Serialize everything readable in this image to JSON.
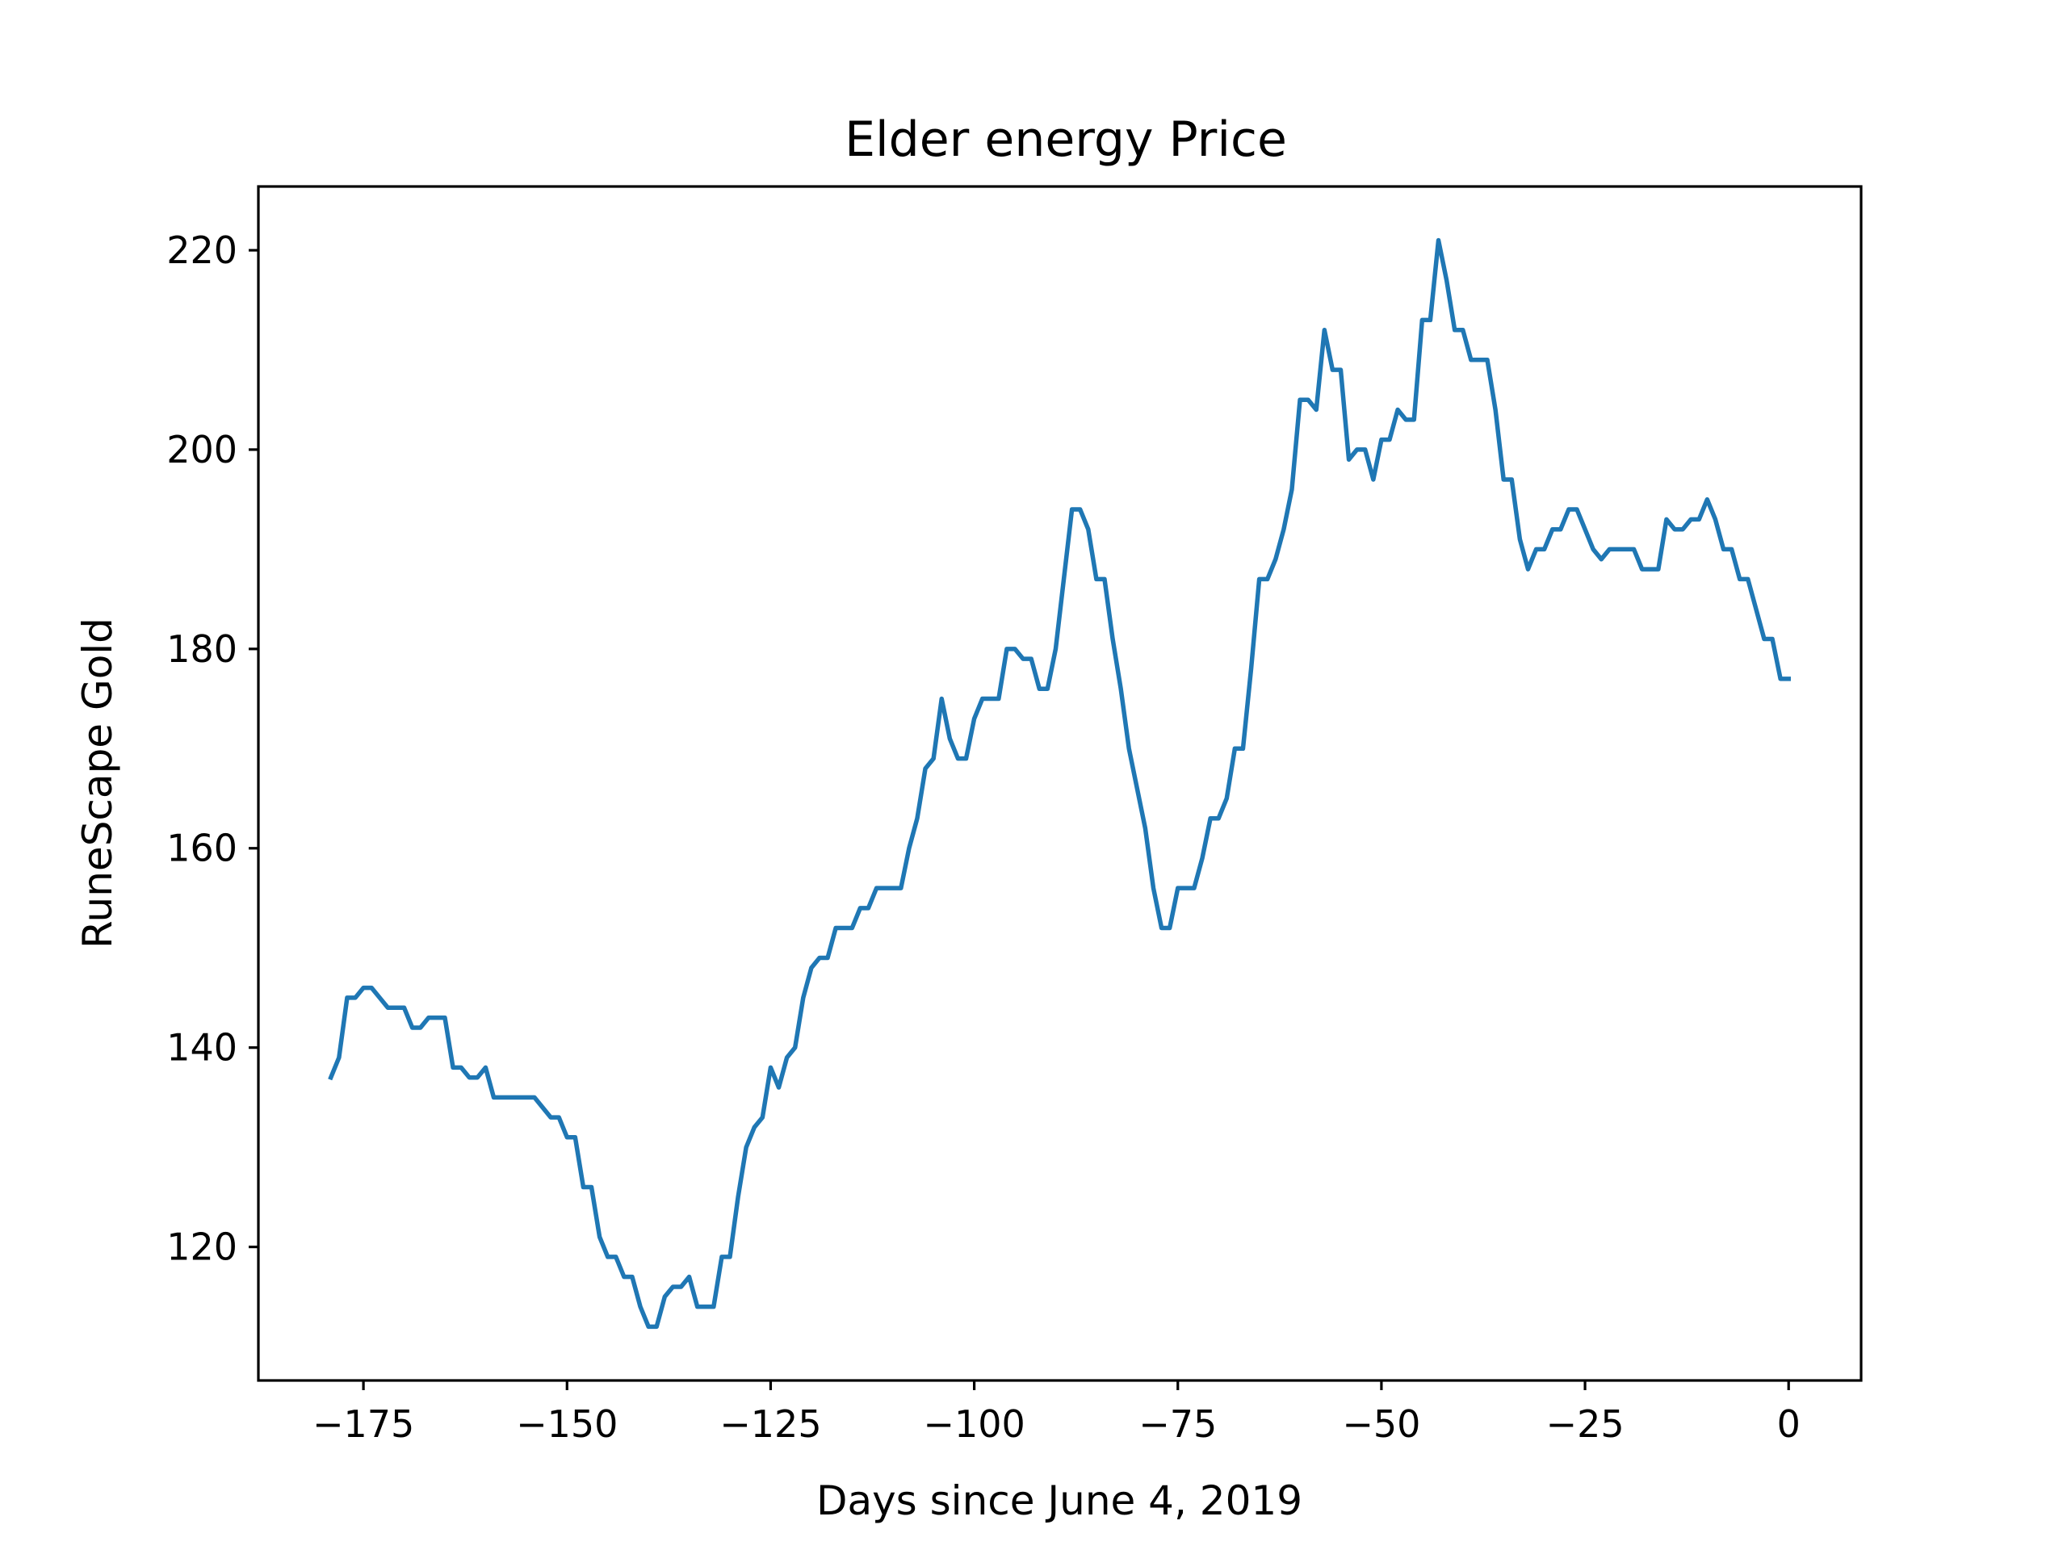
{
  "chart_data": {
    "type": "line",
    "title": "Elder energy Price",
    "xlabel": "Days since June 4, 2019",
    "ylabel": "RuneScape Gold",
    "xlim": [
      -187.9,
      8.9
    ],
    "ylim": [
      106.6,
      226.4
    ],
    "xticks": [
      -175,
      -150,
      -125,
      -100,
      -75,
      -50,
      -25,
      0
    ],
    "xtick_labels": [
      "−175",
      "−150",
      "−125",
      "−100",
      "−75",
      "−50",
      "−25",
      "0"
    ],
    "yticks": [
      120,
      140,
      160,
      180,
      200,
      220
    ],
    "ytick_labels": [
      "120",
      "140",
      "160",
      "180",
      "200",
      "220"
    ],
    "grid": false,
    "line_color": "#1f77b4",
    "series": [
      {
        "x": [
          -179,
          -178,
          -177,
          -176,
          -175,
          -174,
          -173,
          -172,
          -171,
          -170,
          -169,
          -168,
          -167,
          -166,
          -165,
          -164,
          -163,
          -162,
          -161,
          -160,
          -159,
          -158,
          -157,
          -156,
          -155,
          -154,
          -153,
          -152,
          -151,
          -150,
          -149,
          -148,
          -147,
          -146,
          -145,
          -144,
          -143,
          -142,
          -141,
          -140,
          -139,
          -138,
          -137,
          -136,
          -135,
          -134,
          -133,
          -132,
          -131,
          -130,
          -129,
          -128,
          -127,
          -126,
          -125,
          -124,
          -123,
          -122,
          -121,
          -120,
          -119,
          -118,
          -117,
          -116,
          -115,
          -114,
          -113,
          -112,
          -111,
          -110,
          -109,
          -108,
          -107,
          -106,
          -105,
          -104,
          -103,
          -102,
          -101,
          -100,
          -99,
          -98,
          -97,
          -96,
          -95,
          -94,
          -93,
          -92,
          -91,
          -90,
          -89,
          -88,
          -87,
          -86,
          -85,
          -84,
          -83,
          -82,
          -81,
          -80,
          -79,
          -78,
          -77,
          -76,
          -75,
          -74,
          -73,
          -72,
          -71,
          -70,
          -69,
          -68,
          -67,
          -66,
          -65,
          -64,
          -63,
          -62,
          -61,
          -60,
          -59,
          -58,
          -57,
          -56,
          -55,
          -54,
          -53,
          -52,
          -51,
          -50,
          -49,
          -48,
          -47,
          -46,
          -45,
          -44,
          -43,
          -42,
          -41,
          -40,
          -39,
          -38,
          -37,
          -36,
          -35,
          -34,
          -33,
          -32,
          -31,
          -30,
          -29,
          -28,
          -27,
          -26,
          -25,
          -24,
          -23,
          -22,
          -21,
          -20,
          -19,
          -18,
          -17,
          -16,
          -15,
          -14,
          -13,
          -12,
          -11,
          -10,
          -9,
          -8,
          -7,
          -6,
          -5,
          -4,
          -3,
          -2,
          -1,
          0
        ],
        "y": [
          137,
          139,
          145,
          145,
          146,
          146,
          145,
          144,
          144,
          144,
          142,
          142,
          143,
          143,
          143,
          138,
          138,
          137,
          137,
          138,
          135,
          135,
          135,
          135,
          135,
          135,
          134,
          133,
          133,
          131,
          131,
          126,
          126,
          121,
          119,
          119,
          117,
          117,
          114,
          112,
          112,
          115,
          116,
          116,
          117,
          114,
          114,
          114,
          119,
          119,
          125,
          130,
          132,
          133,
          138,
          136,
          139,
          140,
          145,
          148,
          149,
          149,
          152,
          152,
          152,
          154,
          154,
          156,
          156,
          156,
          156,
          160,
          163,
          168,
          169,
          175,
          171,
          169,
          169,
          173,
          175,
          175,
          175,
          180,
          180,
          179,
          179,
          176,
          176,
          180,
          187,
          194,
          194,
          192,
          187,
          187,
          181,
          176,
          170,
          166,
          162,
          156,
          152,
          152,
          156,
          156,
          156,
          159,
          163,
          163,
          165,
          170,
          170,
          178,
          187,
          187,
          189,
          192,
          196,
          205,
          205,
          204,
          212,
          208,
          208,
          199,
          200,
          200,
          197,
          201,
          201,
          204,
          203,
          203,
          213,
          213,
          221,
          217,
          212,
          212,
          209,
          209,
          209,
          204,
          197,
          197,
          191,
          188,
          190,
          190,
          192,
          192,
          194,
          194,
          192,
          190,
          189,
          190,
          190,
          190,
          190,
          188,
          188,
          188,
          193,
          192,
          192,
          193,
          193,
          195,
          193,
          190,
          190,
          187,
          187,
          184,
          181,
          181,
          177,
          177
        ]
      }
    ]
  }
}
